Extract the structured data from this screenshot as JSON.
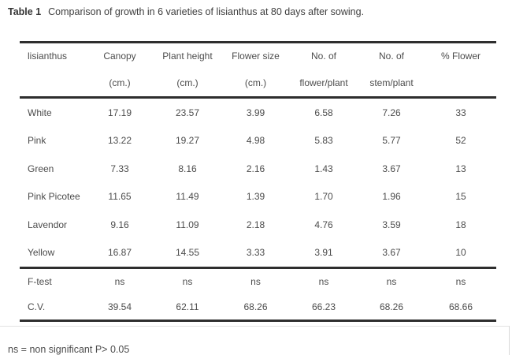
{
  "colors": {
    "rule": "#2e2e2e",
    "text": "#4c4c4c",
    "background": "#ffffff"
  },
  "caption": {
    "label": "Table 1",
    "text": "Comparison of growth in 6 varieties of lisianthus at 80 days after sowing."
  },
  "table": {
    "headers": [
      {
        "line1": "lisianthus",
        "line2": ""
      },
      {
        "line1": "Canopy",
        "line2": "(cm.)"
      },
      {
        "line1": "Plant height",
        "line2": "(cm.)"
      },
      {
        "line1": "Flower size",
        "line2": "(cm.)"
      },
      {
        "line1": "No. of",
        "line2": "flower/plant"
      },
      {
        "line1": "No. of",
        "line2": "stem/plant"
      },
      {
        "line1": "% Flower",
        "line2": ""
      }
    ],
    "rows": [
      {
        "variety": "White",
        "values": [
          "17.19",
          "23.57",
          "3.99",
          "6.58",
          "7.26",
          "33"
        ]
      },
      {
        "variety": "Pink",
        "values": [
          "13.22",
          "19.27",
          "4.98",
          "5.83",
          "5.77",
          "52"
        ]
      },
      {
        "variety": "Green",
        "values": [
          "7.33",
          "8.16",
          "2.16",
          "1.43",
          "3.67",
          "13"
        ]
      },
      {
        "variety": "Pink Picotee",
        "values": [
          "11.65",
          "11.49",
          "1.39",
          "1.70",
          "1.96",
          "15"
        ]
      },
      {
        "variety": "Lavendor",
        "values": [
          "9.16",
          "11.09",
          "2.18",
          "4.76",
          "3.59",
          "18"
        ]
      },
      {
        "variety": "Yellow",
        "values": [
          "16.87",
          "14.55",
          "3.33",
          "3.91",
          "3.67",
          "10"
        ]
      }
    ],
    "stats_rows": [
      {
        "label": "F-test",
        "values": [
          "ns",
          "ns",
          "ns",
          "ns",
          "ns",
          "ns"
        ]
      },
      {
        "label": "C.V.",
        "values": [
          "39.54",
          "62.11",
          "68.26",
          "66.23",
          "68.26",
          "68.66"
        ]
      }
    ]
  },
  "footnote": "ns = non significant P> 0.05"
}
